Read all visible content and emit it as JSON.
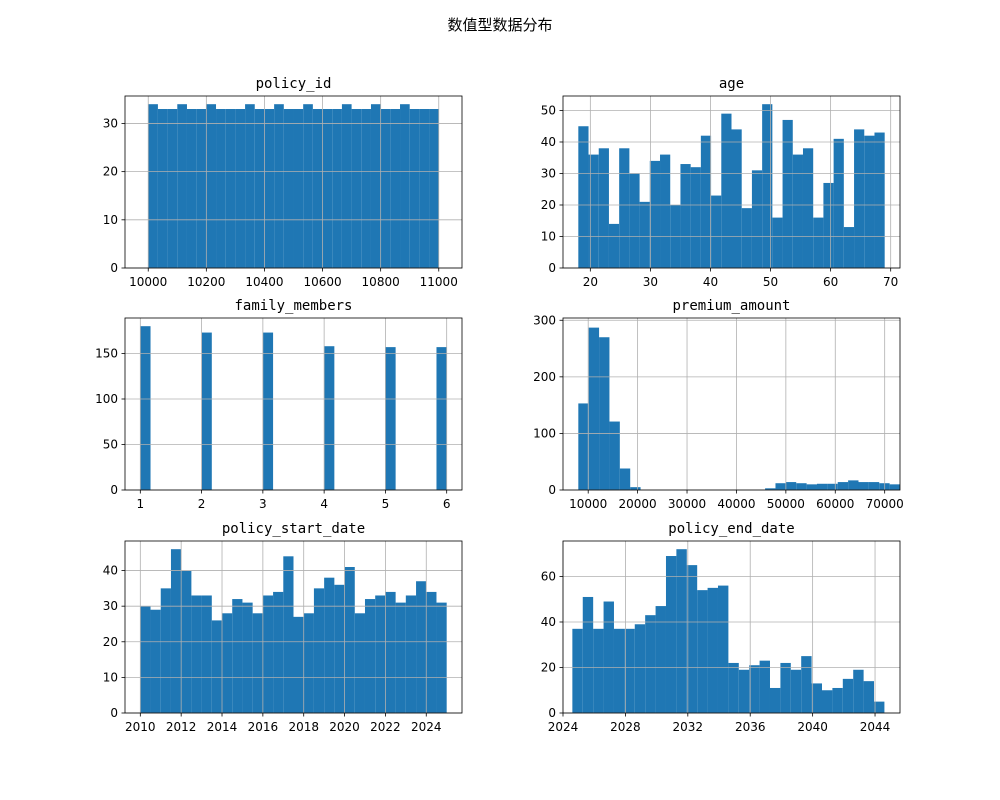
{
  "figure": {
    "title": "数值型数据分布",
    "bar_color": "#1f77b4",
    "grid_color": "#b0b0b0"
  },
  "chart_data": [
    {
      "type": "bar",
      "title": "policy_id",
      "xlim": [
        9920,
        11080
      ],
      "ylim": [
        0,
        35.7
      ],
      "grid": true,
      "xticks": [
        10000,
        10200,
        10400,
        10600,
        10800,
        11000
      ],
      "xtick_labels": [
        "10000",
        "10200",
        "10400",
        "10600",
        "10800",
        "11000"
      ],
      "yticks": [
        0,
        10,
        20,
        30
      ],
      "ytick_labels": [
        "0",
        "10",
        "20",
        "30"
      ],
      "bin_start": 10000,
      "bin_width": 33.333,
      "values": [
        34,
        33,
        33,
        34,
        33,
        33,
        34,
        33,
        33,
        33,
        34,
        33,
        33,
        34,
        33,
        33,
        34,
        33,
        33,
        33,
        34,
        33,
        33,
        34,
        33,
        33,
        34,
        33,
        33,
        33
      ]
    },
    {
      "type": "bar",
      "title": "age",
      "xlim": [
        15.45,
        71.55
      ],
      "ylim": [
        0,
        54.6
      ],
      "grid": true,
      "xticks": [
        20,
        30,
        40,
        50,
        60,
        70
      ],
      "xtick_labels": [
        "20",
        "30",
        "40",
        "50",
        "60",
        "70"
      ],
      "yticks": [
        0,
        10,
        20,
        30,
        40,
        50
      ],
      "ytick_labels": [
        "0",
        "10",
        "20",
        "30",
        "40",
        "50"
      ],
      "bin_start": 18,
      "bin_width": 1.7,
      "values": [
        45,
        36,
        38,
        14,
        38,
        30,
        21,
        34,
        36,
        20,
        33,
        32,
        42,
        23,
        49,
        44,
        19,
        31,
        52,
        16,
        47,
        36,
        38,
        16,
        27,
        41,
        13,
        44,
        42,
        43
      ]
    },
    {
      "type": "bar",
      "title": "family_members",
      "xlim": [
        0.75,
        6.25
      ],
      "ylim": [
        0,
        189
      ],
      "grid": true,
      "xticks": [
        1,
        2,
        3,
        4,
        5,
        6
      ],
      "xtick_labels": [
        "1",
        "2",
        "3",
        "4",
        "5",
        "6"
      ],
      "yticks": [
        0,
        50,
        100,
        150
      ],
      "ytick_labels": [
        "0",
        "50",
        "100",
        "150"
      ],
      "bin_start": 1,
      "bin_width": 0.16667,
      "values": [
        180,
        0,
        0,
        0,
        0,
        0,
        173,
        0,
        0,
        0,
        0,
        0,
        173,
        0,
        0,
        0,
        0,
        0,
        158,
        0,
        0,
        0,
        0,
        0,
        157,
        0,
        0,
        0,
        0,
        157
      ]
    },
    {
      "type": "bar",
      "title": "premium_amount",
      "xlim": [
        4900,
        73100
      ],
      "ylim": [
        0,
        304
      ],
      "grid": true,
      "xticks": [
        10000,
        20000,
        30000,
        40000,
        50000,
        60000,
        70000
      ],
      "xtick_labels": [
        "10000",
        "20000",
        "30000",
        "40000",
        "50000",
        "60000",
        "70000"
      ],
      "yticks": [
        0,
        100,
        200,
        300
      ],
      "ytick_labels": [
        "0",
        "100",
        "200",
        "300"
      ],
      "bin_start": 8000,
      "bin_width": 2100,
      "values": [
        153,
        287,
        270,
        121,
        38,
        5,
        0,
        0,
        0,
        0,
        0,
        0,
        0,
        0,
        0,
        0,
        0,
        0,
        3,
        12,
        14,
        12,
        10,
        11,
        11,
        14,
        17,
        14,
        14,
        12,
        10
      ]
    },
    {
      "type": "bar",
      "title": "policy_start_date",
      "xlim": [
        2009.25,
        2025.75
      ],
      "ylim": [
        0,
        48.3
      ],
      "grid": true,
      "xticks": [
        2010,
        2012,
        2014,
        2016,
        2018,
        2020,
        2022,
        2024
      ],
      "xtick_labels": [
        "2010",
        "2012",
        "2014",
        "2016",
        "2018",
        "2020",
        "2022",
        "2024"
      ],
      "yticks": [
        0,
        10,
        20,
        30,
        40
      ],
      "ytick_labels": [
        "0",
        "10",
        "20",
        "30",
        "40"
      ],
      "bin_start": 2010,
      "bin_width": 0.5,
      "values": [
        30,
        29,
        35,
        46,
        40,
        33,
        33,
        26,
        28,
        32,
        31,
        28,
        33,
        34,
        44,
        27,
        28,
        35,
        38,
        36,
        41,
        28,
        32,
        33,
        34,
        31,
        33,
        37,
        34,
        31
      ]
    },
    {
      "type": "bar",
      "title": "policy_end_date",
      "xlim": [
        2024,
        2045.6
      ],
      "ylim": [
        0,
        75.6
      ],
      "grid": true,
      "xticks": [
        2024,
        2028,
        2032,
        2036,
        2040,
        2044
      ],
      "xtick_labels": [
        "2024",
        "2028",
        "2032",
        "2036",
        "2040",
        "2044"
      ],
      "yticks": [
        0,
        20,
        40,
        60
      ],
      "ytick_labels": [
        "0",
        "20",
        "40",
        "60"
      ],
      "bin_start": 2024.6,
      "bin_width": 0.6667,
      "values": [
        37,
        51,
        37,
        49,
        37,
        37,
        39,
        43,
        47,
        69,
        72,
        65,
        54,
        55,
        56,
        22,
        19,
        21,
        23,
        11,
        22,
        19,
        25,
        13,
        10,
        11,
        15,
        19,
        14,
        5
      ]
    }
  ]
}
